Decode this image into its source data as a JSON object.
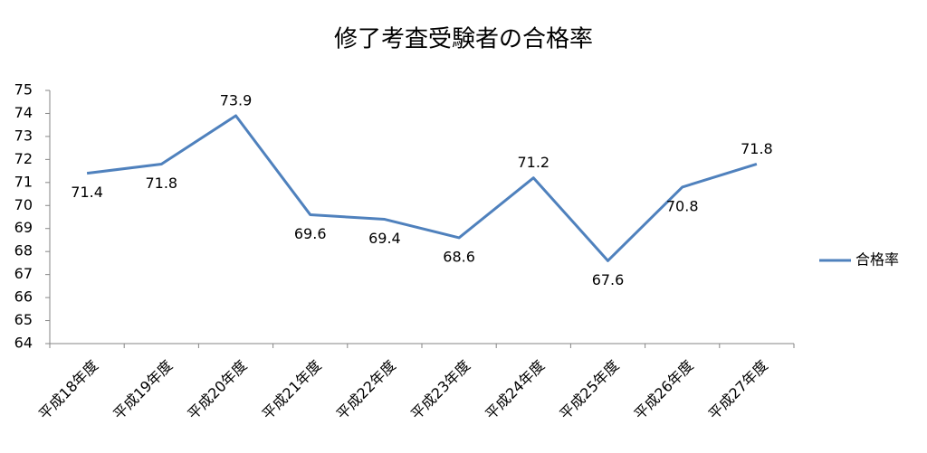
{
  "chart_data": {
    "type": "line",
    "title": "修了考査受験者の合格率",
    "categories": [
      "平成18年度",
      "平成19年度",
      "平成20年度",
      "平成21年度",
      "平成22年度",
      "平成23年度",
      "平成24年度",
      "平成25年度",
      "平成26年度",
      "平成27年度"
    ],
    "series": [
      {
        "name": "合格率",
        "color": "#4f81bd",
        "values": [
          71.4,
          71.8,
          73.9,
          69.6,
          69.4,
          68.6,
          71.2,
          67.6,
          70.8,
          71.8
        ]
      }
    ],
    "ylim": [
      64,
      75
    ],
    "yticks": [
      64,
      65,
      66,
      67,
      68,
      69,
      70,
      71,
      72,
      73,
      74,
      75
    ],
    "grid": false,
    "legend": "right"
  }
}
